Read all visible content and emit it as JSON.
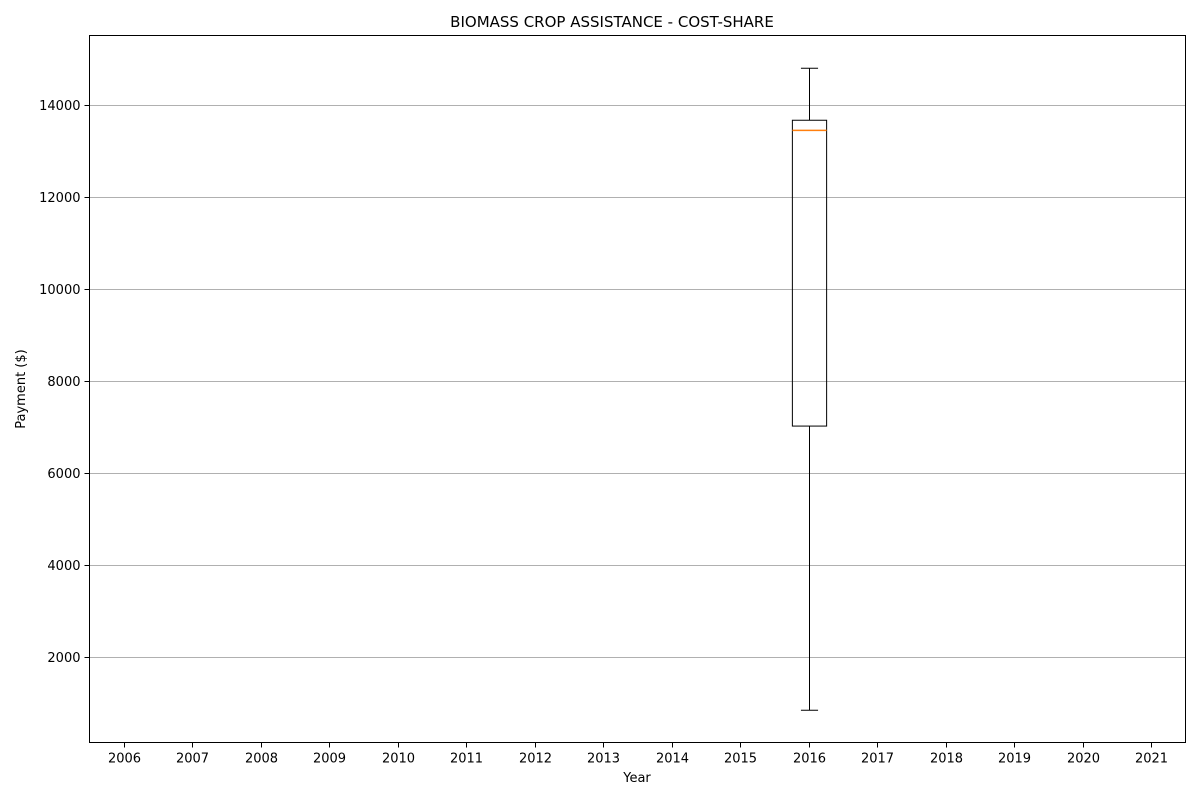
{
  "chart_data": {
    "type": "box",
    "title": "BIOMASS CROP ASSISTANCE - COST-SHARE",
    "xlabel": "Year",
    "ylabel": "Payment ($)",
    "categories": [
      "2006",
      "2007",
      "2008",
      "2009",
      "2010",
      "2011",
      "2012",
      "2013",
      "2014",
      "2015",
      "2016",
      "2017",
      "2018",
      "2019",
      "2020",
      "2021"
    ],
    "yticks": [
      2000,
      4000,
      6000,
      8000,
      10000,
      12000,
      14000
    ],
    "ylim": [
      150,
      15500
    ],
    "grid": "y",
    "boxes": [
      {
        "category": "2016",
        "whisker_low": 850,
        "q1": 7020,
        "median": 13440,
        "q3": 13660,
        "whisker_high": 14790
      }
    ],
    "colors": {
      "box": "#000000",
      "median": "#ff7f0e",
      "grid": "#b0b0b0"
    }
  }
}
